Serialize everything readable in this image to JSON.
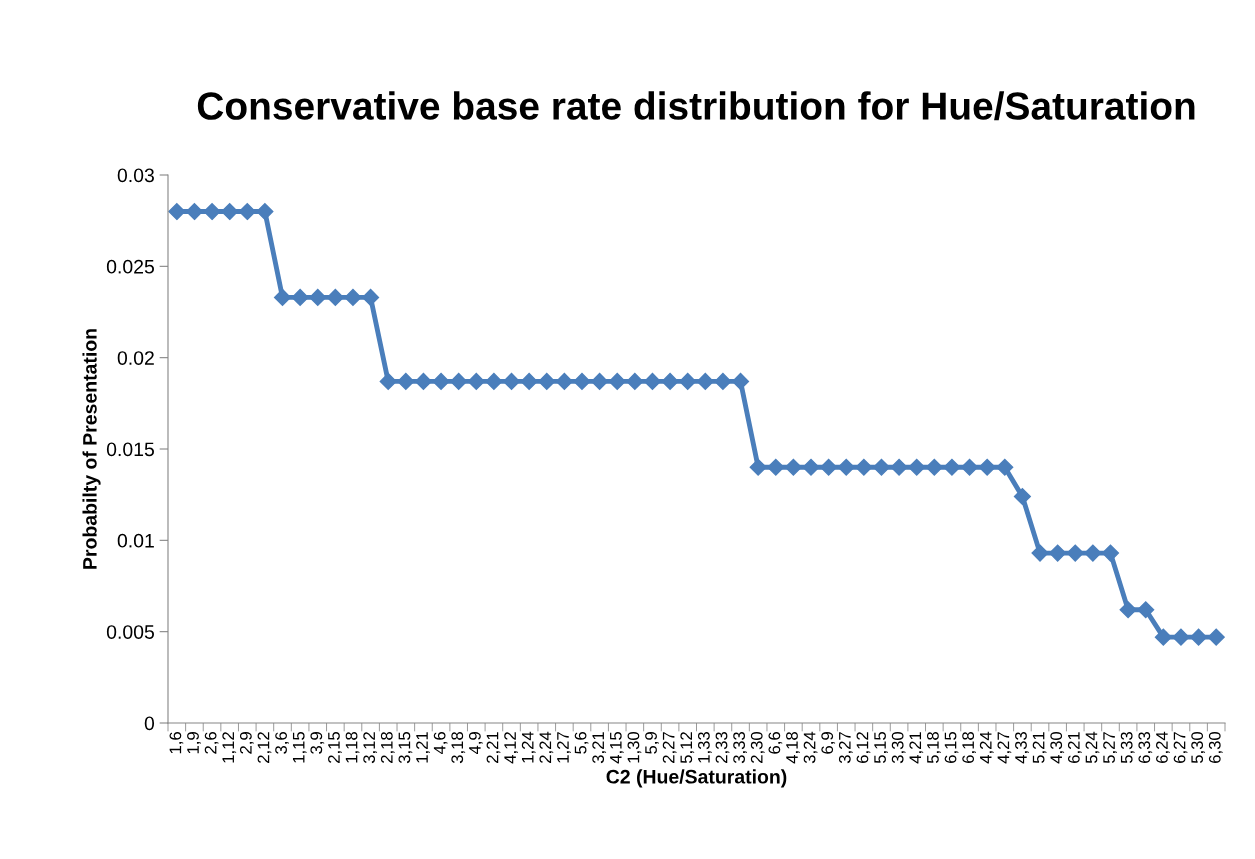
{
  "chart_data": {
    "type": "line",
    "title": "Conservative base rate distribution for Hue/Saturation",
    "xlabel": "C2 (Hue/Saturation)",
    "ylabel": "Probabilty of Presentation",
    "categories": [
      "1,6",
      "1,9",
      "2,6",
      "1,12",
      "2,9",
      "2,12",
      "3,6",
      "1,15",
      "3,9",
      "2,15",
      "1,18",
      "3,12",
      "2,18",
      "3,15",
      "1,21",
      "4,6",
      "3,18",
      "4,9",
      "2,21",
      "4,12",
      "1,24",
      "2,24",
      "1,27",
      "5,6",
      "3,21",
      "4,15",
      "1,30",
      "5,9",
      "2,27",
      "5,12",
      "1,33",
      "2,33",
      "3,33",
      "2,30",
      "6,6",
      "4,18",
      "3,24",
      "6,9",
      "3,27",
      "6,12",
      "5,15",
      "3,30",
      "4,21",
      "5,18",
      "6,15",
      "6,18",
      "4,24",
      "4,27",
      "4,33",
      "5,21",
      "4,30",
      "6,21",
      "5,24",
      "5,27",
      "5,33",
      "6,33",
      "6,24",
      "6,27",
      "5,30",
      "6,30"
    ],
    "series": [
      {
        "color": "#4a7ebb",
        "values": [
          0.028,
          0.028,
          0.028,
          0.028,
          0.028,
          0.028,
          0.0233,
          0.0233,
          0.0233,
          0.0233,
          0.0233,
          0.0233,
          0.0187,
          0.0187,
          0.0187,
          0.0187,
          0.0187,
          0.0187,
          0.0187,
          0.0187,
          0.0187,
          0.0187,
          0.0187,
          0.0187,
          0.0187,
          0.0187,
          0.0187,
          0.0187,
          0.0187,
          0.0187,
          0.0187,
          0.0187,
          0.0187,
          0.014,
          0.014,
          0.014,
          0.014,
          0.014,
          0.014,
          0.014,
          0.014,
          0.014,
          0.014,
          0.014,
          0.014,
          0.014,
          0.014,
          0.014,
          0.0124,
          0.0093,
          0.0093,
          0.0093,
          0.0093,
          0.0093,
          0.0062,
          0.0062,
          0.0047,
          0.0047,
          0.0047,
          0.0047
        ]
      }
    ],
    "ylim": [
      0,
      0.03
    ],
    "yticks": [
      0,
      0.005,
      0.01,
      0.015,
      0.02,
      0.025,
      0.03
    ],
    "grid": false,
    "legend": false,
    "marker": "diamond",
    "line_style": "solid"
  }
}
